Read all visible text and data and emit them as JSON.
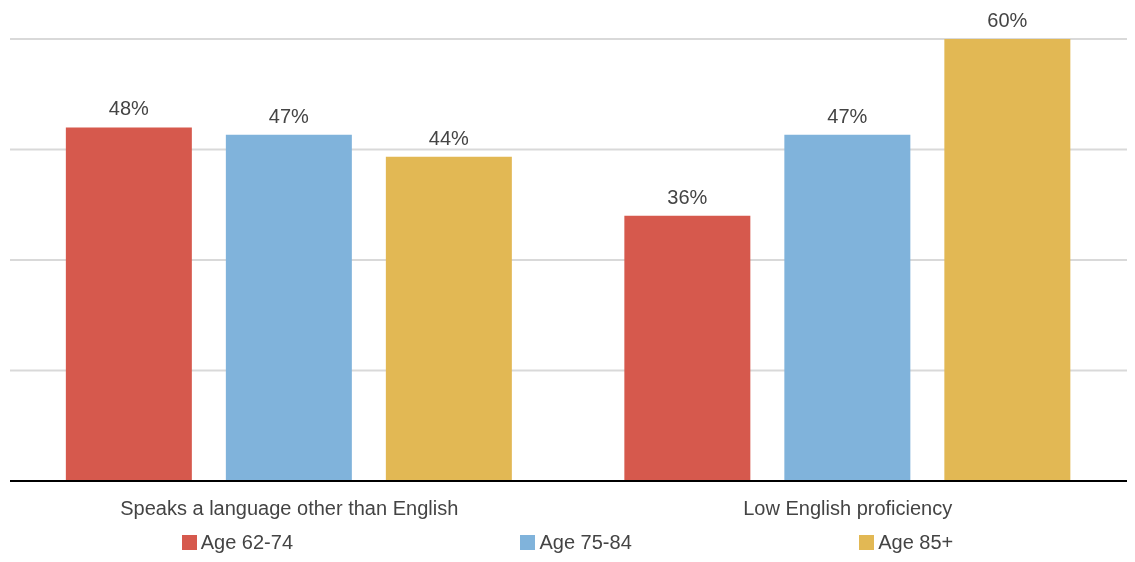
{
  "chart_data": {
    "type": "bar",
    "categories": [
      "Speaks a language other than English",
      "Low English proficiency"
    ],
    "series": [
      {
        "name": "Age 62-74",
        "color": "#d6594d",
        "values": [
          48,
          36
        ],
        "value_labels": [
          "48%",
          "36%"
        ]
      },
      {
        "name": "Age 75-84",
        "color": "#80b3db",
        "values": [
          47,
          47
        ],
        "value_labels": [
          "47%",
          "47%"
        ]
      },
      {
        "name": "Age 85+",
        "color": "#e2b854",
        "values": [
          44,
          60
        ],
        "value_labels": [
          "44%",
          "60%"
        ]
      }
    ],
    "ylim": [
      0,
      60
    ],
    "yticks": [
      {
        "value": 0,
        "label": null
      },
      {
        "value": 15,
        "label": null
      },
      {
        "value": 30,
        "label": null
      },
      {
        "value": 45,
        "label": null
      },
      {
        "value": 60,
        "label": null
      }
    ],
    "grid": "y",
    "legend": "bottom",
    "tick_labels": "x"
  }
}
